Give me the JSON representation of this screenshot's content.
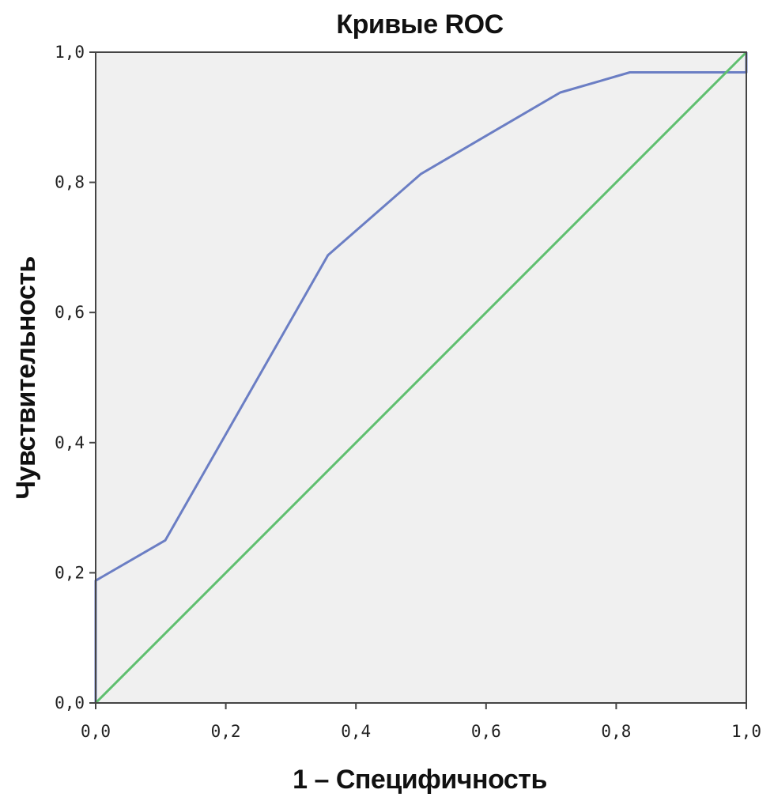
{
  "chart_data": {
    "type": "line",
    "title": "Кривые ROC",
    "xlabel": "1 – Специфичность",
    "ylabel": "Чувствительность",
    "xlim": [
      0,
      1
    ],
    "ylim": [
      0,
      1
    ],
    "x_ticks": [
      "0,0",
      "0,2",
      "0,4",
      "0,6",
      "0,8",
      "1,0"
    ],
    "y_ticks": [
      "0,0",
      "0,2",
      "0,4",
      "0,6",
      "0,8",
      "1,0"
    ],
    "grid": false,
    "background": "#f0f0f0",
    "series": [
      {
        "color": "#6b7ec4",
        "x": [
          0.0,
          0.0,
          0.107,
          0.357,
          0.5,
          0.714,
          0.821,
          1.0,
          1.0
        ],
        "y": [
          0.0,
          0.188,
          0.25,
          0.688,
          0.813,
          0.938,
          0.969,
          0.969,
          1.0
        ]
      },
      {
        "color": "#5fbf6f",
        "x": [
          0.0,
          1.0
        ],
        "y": [
          0.0,
          1.0
        ]
      }
    ]
  }
}
